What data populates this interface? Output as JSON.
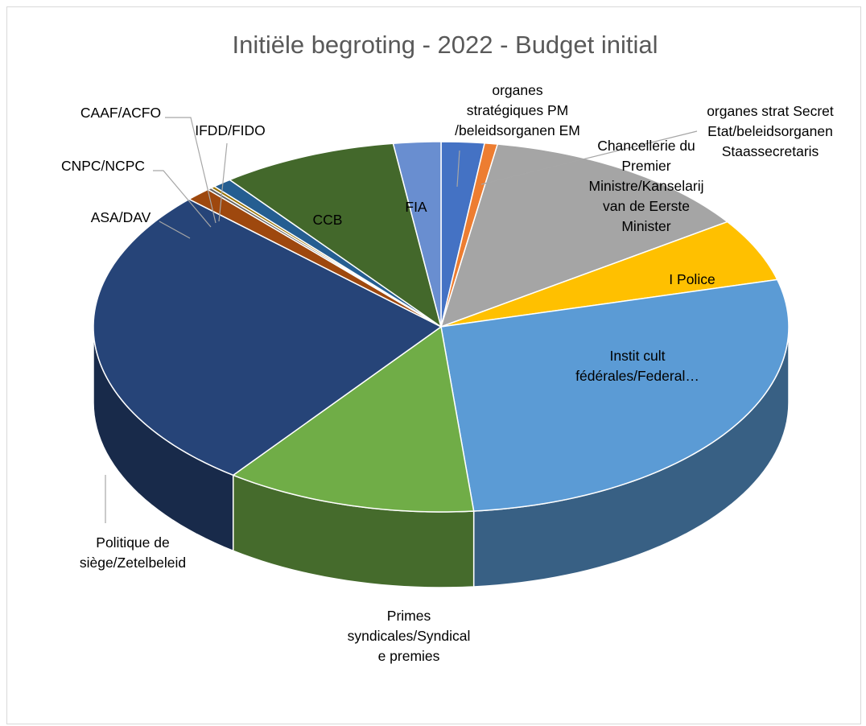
{
  "chart_data": {
    "type": "pie",
    "style": "3d",
    "title": "Initiële begroting - 2022 - Budget initial",
    "slices": [
      {
        "label": "organes stratégiques PM /beleidsorganen EM",
        "lines": [
          "organes",
          "stratégiques PM",
          "/beleidsorganen EM"
        ],
        "value": 2.0,
        "color": "#4472C4"
      },
      {
        "label": "organes strat Secret Etat/beleidsorganen Staassecretaris",
        "lines": [
          "organes strat Secret",
          "Etat/beleidsorganen",
          "Staassecretaris"
        ],
        "value": 0.6,
        "color": "#ED7D31"
      },
      {
        "label": "Chancellerie du Premier Ministre/Kanselarij van de Eerste Minister",
        "lines": [
          "Chancellerie du",
          "Premier",
          "Ministre/Kanselarij",
          "van de Eerste",
          "Minister"
        ],
        "value": 12.8,
        "color": "#A5A5A5"
      },
      {
        "label": "I Police",
        "lines": [
          "I Police"
        ],
        "value": 5.5,
        "color": "#FFC000"
      },
      {
        "label": "Instit cult fédérales/Federal…",
        "lines": [
          "Instit cult",
          "fédérales/Federal…"
        ],
        "value": 27.6,
        "color": "#5B9BD5"
      },
      {
        "label": "Primes syndicales/Syndicale premies",
        "lines": [
          "Primes",
          "syndicales/Syndical",
          "e premies"
        ],
        "value": 11.7,
        "color": "#70AD47"
      },
      {
        "label": "Politique de siège/Zetelbeleid",
        "lines": [
          "Politique de",
          "siège/Zetelbeleid"
        ],
        "value": 26.9,
        "color": "#264478"
      },
      {
        "label": "ASA/DAV",
        "lines": [
          "ASA/DAV"
        ],
        "value": 1.2,
        "color": "#9E480E"
      },
      {
        "label": "CNPC/NCPC",
        "lines": [
          "CNPC/NCPC"
        ],
        "value": 0.2,
        "color": "#636363"
      },
      {
        "label": "CAAF/ACFO",
        "lines": [
          "CAAF/ACFO"
        ],
        "value": 0.2,
        "color": "#997300"
      },
      {
        "label": "IFDD/FIDO",
        "lines": [
          "IFDD/FIDO"
        ],
        "value": 0.9,
        "color": "#255E91"
      },
      {
        "label": "CCB",
        "lines": [
          "CCB"
        ],
        "value": 8.2,
        "color": "#43682B"
      },
      {
        "label": "FIA",
        "lines": [
          "FIA"
        ],
        "value": 2.2,
        "color": "#698ED0"
      }
    ]
  }
}
